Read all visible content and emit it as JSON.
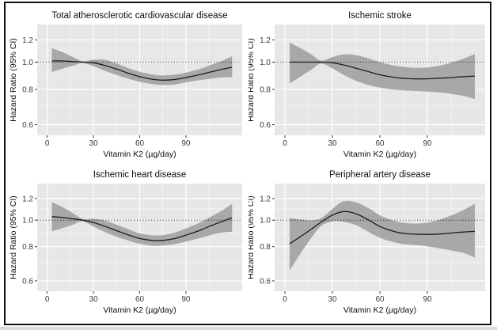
{
  "figure": {
    "layout": "2x2-panel-grid",
    "x_axis": {
      "label": "Vitamin K2 (µg/day)",
      "ticks": [
        0,
        30,
        60,
        90
      ],
      "tick_labels": [
        "0",
        "30",
        "60",
        "90"
      ],
      "minor_ticks": [
        15,
        45,
        75,
        105
      ],
      "domain": [
        -6.5,
        126.5
      ]
    },
    "y_axis": {
      "label": "Hazard Ratio (95% CI)",
      "scale": "log",
      "ticks": [
        0.6,
        0.8,
        1.0,
        1.2
      ],
      "tick_labels": [
        "0.6",
        "0.8",
        "1.0",
        "1.2"
      ],
      "minor_ticks": [
        0.7,
        0.9,
        1.1
      ],
      "domain": [
        0.55,
        1.36
      ]
    },
    "reference_line": 1.0,
    "colors": {
      "panel_bg": "#e7e7e7",
      "grid_major": "#ffffff",
      "grid_minor": "#f6f6f6",
      "ci_band": "#a8a8a8",
      "estimate_line": "#1c1c1c",
      "reference_line": "#2e2e2e",
      "tick_mark": "#333333",
      "tick_text": "#3a3a3a",
      "title_text": "#0d0d0d",
      "frame": "#101010"
    }
  },
  "chart_data": [
    {
      "type": "line",
      "title": "Total atherosclerotic cardiovascular disease",
      "xlabel": "Vitamin K2 (µg/day)",
      "ylabel": "Hazard Ratio (95% CI)",
      "x": [
        3,
        10,
        17,
        23,
        30,
        37,
        45,
        53,
        60,
        68,
        75,
        83,
        90,
        98,
        105,
        113,
        120
      ],
      "series": [
        {
          "name": "estimate",
          "values": [
            1.01,
            1.01,
            1.005,
            1.0,
            0.995,
            0.975,
            0.945,
            0.912,
            0.888,
            0.87,
            0.863,
            0.868,
            0.882,
            0.9,
            0.92,
            0.942,
            0.96
          ]
        },
        {
          "name": "upper_95ci",
          "values": [
            1.12,
            1.085,
            1.04,
            1.008,
            1.02,
            1.02,
            0.99,
            0.952,
            0.925,
            0.905,
            0.898,
            0.903,
            0.918,
            0.942,
            0.972,
            1.008,
            1.05
          ]
        },
        {
          "name": "lower_95ci",
          "values": [
            0.922,
            0.948,
            0.972,
            0.993,
            0.968,
            0.934,
            0.9,
            0.872,
            0.852,
            0.836,
            0.83,
            0.834,
            0.848,
            0.862,
            0.872,
            0.882,
            0.885
          ]
        }
      ]
    },
    {
      "type": "line",
      "title": "Ischemic stroke",
      "xlabel": "Vitamin K2 (µg/day)",
      "ylabel": "Hazard Ratio (95% CI)",
      "x": [
        3,
        10,
        17,
        23,
        30,
        37,
        45,
        53,
        60,
        68,
        75,
        83,
        90,
        98,
        105,
        113,
        120
      ],
      "series": [
        {
          "name": "estimate",
          "values": [
            1.0,
            1.0,
            1.0,
            1.0,
            0.995,
            0.978,
            0.952,
            0.925,
            0.902,
            0.885,
            0.876,
            0.872,
            0.873,
            0.877,
            0.882,
            0.888,
            0.893
          ]
        },
        {
          "name": "upper_95ci",
          "values": [
            1.175,
            1.12,
            1.062,
            1.012,
            1.042,
            1.065,
            1.058,
            1.03,
            1.0,
            0.975,
            0.962,
            0.955,
            0.958,
            0.972,
            0.995,
            1.03,
            1.068
          ]
        },
        {
          "name": "lower_95ci",
          "values": [
            0.84,
            0.89,
            0.943,
            0.988,
            0.95,
            0.902,
            0.858,
            0.83,
            0.812,
            0.8,
            0.794,
            0.79,
            0.786,
            0.78,
            0.772,
            0.758,
            0.74
          ]
        }
      ]
    },
    {
      "type": "line",
      "title": "Ischemic heart disease",
      "xlabel": "Vitamin K2 (µg/day)",
      "ylabel": "Hazard Ratio (95% CI)",
      "x": [
        3,
        10,
        17,
        23,
        30,
        37,
        45,
        53,
        60,
        68,
        75,
        83,
        90,
        98,
        105,
        113,
        120
      ],
      "series": [
        {
          "name": "estimate",
          "values": [
            1.03,
            1.022,
            1.01,
            1.0,
            0.98,
            0.952,
            0.915,
            0.882,
            0.857,
            0.843,
            0.843,
            0.857,
            0.882,
            0.913,
            0.948,
            0.987,
            1.02
          ]
        },
        {
          "name": "upper_95ci",
          "values": [
            1.165,
            1.115,
            1.058,
            1.01,
            1.012,
            0.998,
            0.962,
            0.925,
            0.895,
            0.88,
            0.882,
            0.902,
            0.933,
            0.973,
            1.022,
            1.08,
            1.148
          ]
        },
        {
          "name": "lower_95ci",
          "values": [
            0.91,
            0.936,
            0.964,
            0.99,
            0.949,
            0.907,
            0.87,
            0.841,
            0.82,
            0.807,
            0.808,
            0.818,
            0.835,
            0.857,
            0.879,
            0.9,
            0.907
          ]
        }
      ]
    },
    {
      "type": "line",
      "title": "Peripheral artery disease",
      "xlabel": "Vitamin K2 (µg/day)",
      "ylabel": "Hazard Ratio (95% CI)",
      "x": [
        3,
        10,
        17,
        23,
        30,
        37,
        45,
        53,
        60,
        68,
        75,
        83,
        90,
        98,
        105,
        113,
        120
      ],
      "series": [
        {
          "name": "estimate",
          "values": [
            0.82,
            0.872,
            0.93,
            0.985,
            1.043,
            1.075,
            1.055,
            1.0,
            0.948,
            0.912,
            0.895,
            0.888,
            0.887,
            0.89,
            0.897,
            0.905,
            0.91
          ]
        },
        {
          "name": "upper_95ci",
          "values": [
            1.02,
            1.005,
            0.998,
            1.018,
            1.098,
            1.172,
            1.162,
            1.105,
            1.042,
            0.998,
            0.978,
            0.972,
            0.98,
            1.005,
            1.04,
            1.09,
            1.148
          ]
        },
        {
          "name": "lower_95ci",
          "values": [
            0.655,
            0.757,
            0.866,
            0.953,
            0.99,
            0.986,
            0.958,
            0.905,
            0.862,
            0.833,
            0.818,
            0.81,
            0.802,
            0.788,
            0.775,
            0.758,
            0.73
          ]
        }
      ]
    }
  ]
}
